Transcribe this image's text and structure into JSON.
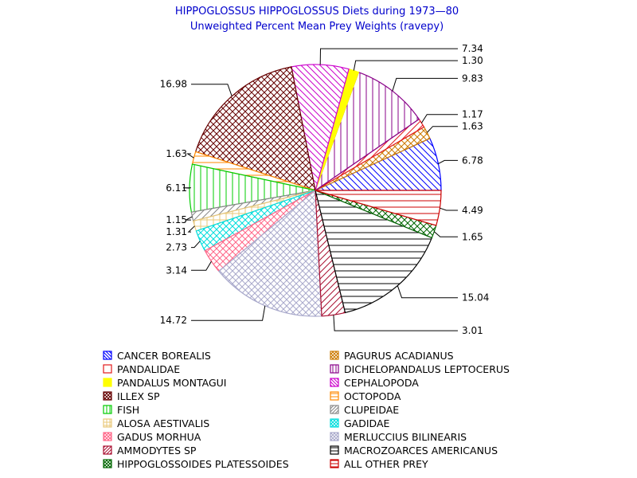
{
  "chart_data": {
    "type": "pie",
    "title": "HIPPOGLOSSUS HIPPOGLOSSUS Diets during 1973—80",
    "subtitle": "Unweighted Percent Mean Prey Weights (ravepy)",
    "slices": [
      {
        "name": "CANCER BOREALIS",
        "value": 6.78,
        "label": "6.78",
        "color": "#0000ff",
        "pattern": "diag_down"
      },
      {
        "name": "PAGURUS ACADIANUS",
        "value": 1.63,
        "label": "1.63",
        "color": "#cc7a00",
        "pattern": "cross"
      },
      {
        "name": "PANDALIDAE",
        "value": 1.17,
        "label": "1.17",
        "color": "#e31a1c",
        "pattern": "diag_up"
      },
      {
        "name": "DICHELOPANDALUS LEPTOCERUS",
        "value": 9.83,
        "label": "9.83",
        "color": "#880088",
        "pattern": "vert"
      },
      {
        "name": "PANDALUS MONTAGUI",
        "value": 1.3,
        "label": "1.30",
        "color": "#ffff00",
        "pattern": "solid"
      },
      {
        "name": "CEPHALOPODA",
        "value": 7.34,
        "label": "7.34",
        "color": "#cc00cc",
        "pattern": "diag_down"
      },
      {
        "name": "ILLEX SP",
        "value": 16.98,
        "label": "16.98",
        "color": "#660000",
        "pattern": "cross"
      },
      {
        "name": "OCTOPODA",
        "value": 1.63,
        "label": "1.63",
        "color": "#ff8800",
        "pattern": "horiz"
      },
      {
        "name": "FISH",
        "value": 6.11,
        "label": "6.11",
        "color": "#00cc00",
        "pattern": "vert"
      },
      {
        "name": "CLUPEIDAE",
        "value": 1.15,
        "label": "1.15",
        "color": "#888888",
        "pattern": "diag_up"
      },
      {
        "name": "ALOSA AESTIVALIS",
        "value": 1.31,
        "label": "1.31",
        "color": "#e8c87a",
        "pattern": "grid"
      },
      {
        "name": "GADIDAE",
        "value": 2.73,
        "label": "2.73",
        "color": "#00dddd",
        "pattern": "cross"
      },
      {
        "name": "GADUS MORHUA",
        "value": 3.14,
        "label": "3.14",
        "color": "#ff6688",
        "pattern": "cross"
      },
      {
        "name": "MERLUCCIUS BILINEARIS",
        "value": 14.72,
        "label": "14.72",
        "color": "#aaaacc",
        "pattern": "cross"
      },
      {
        "name": "AMMODYTES SP",
        "value": 3.01,
        "label": "3.01",
        "color": "#aa1133",
        "pattern": "diag_up"
      },
      {
        "name": "MACROZOARCES AMERICANUS",
        "value": 15.04,
        "label": "15.04",
        "color": "#000000",
        "pattern": "horiz"
      },
      {
        "name": "HIPPOGLOSSOIDES PLATESSOIDES",
        "value": 1.65,
        "label": "1.65",
        "color": "#006600",
        "pattern": "cross"
      },
      {
        "name": "ALL OTHER PREY",
        "value": 4.49,
        "label": "4.49",
        "color": "#cc0000",
        "pattern": "horiz"
      }
    ],
    "start_angle_deg": 0,
    "direction": "counterclockwise",
    "legend_placement": "bottom",
    "legend": [
      {
        "name": "CANCER BOREALIS",
        "color": "#0000ff",
        "pattern": "diag_down"
      },
      {
        "name": "PAGURUS ACADIANUS",
        "color": "#cc7a00",
        "pattern": "cross"
      },
      {
        "name": "PANDALIDAE",
        "color": "#e31a1c",
        "pattern": "solid_border"
      },
      {
        "name": "DICHELOPANDALUS LEPTOCERUS",
        "color": "#880088",
        "pattern": "vert"
      },
      {
        "name": "PANDALUS MONTAGUI",
        "color": "#ffff00",
        "pattern": "solid"
      },
      {
        "name": "CEPHALOPODA",
        "color": "#cc00cc",
        "pattern": "diag_down"
      },
      {
        "name": "ILLEX SP",
        "color": "#660000",
        "pattern": "cross"
      },
      {
        "name": "OCTOPODA",
        "color": "#ff8800",
        "pattern": "horiz"
      },
      {
        "name": "FISH",
        "color": "#00cc00",
        "pattern": "vert"
      },
      {
        "name": "CLUPEIDAE",
        "color": "#888888",
        "pattern": "diag_up"
      },
      {
        "name": "ALOSA AESTIVALIS",
        "color": "#e8c87a",
        "pattern": "grid"
      },
      {
        "name": "GADIDAE",
        "color": "#00dddd",
        "pattern": "cross"
      },
      {
        "name": "GADUS MORHUA",
        "color": "#ff6688",
        "pattern": "cross"
      },
      {
        "name": "MERLUCCIUS BILINEARIS",
        "color": "#aaaacc",
        "pattern": "cross"
      },
      {
        "name": "AMMODYTES SP",
        "color": "#aa1133",
        "pattern": "diag_up"
      },
      {
        "name": "MACROZOARCES AMERICANUS",
        "color": "#000000",
        "pattern": "horiz"
      },
      {
        "name": "HIPPOGLOSSOIDES PLATESSOIDES",
        "color": "#006600",
        "pattern": "cross"
      },
      {
        "name": "ALL OTHER PREY",
        "color": "#cc0000",
        "pattern": "horiz"
      }
    ]
  }
}
